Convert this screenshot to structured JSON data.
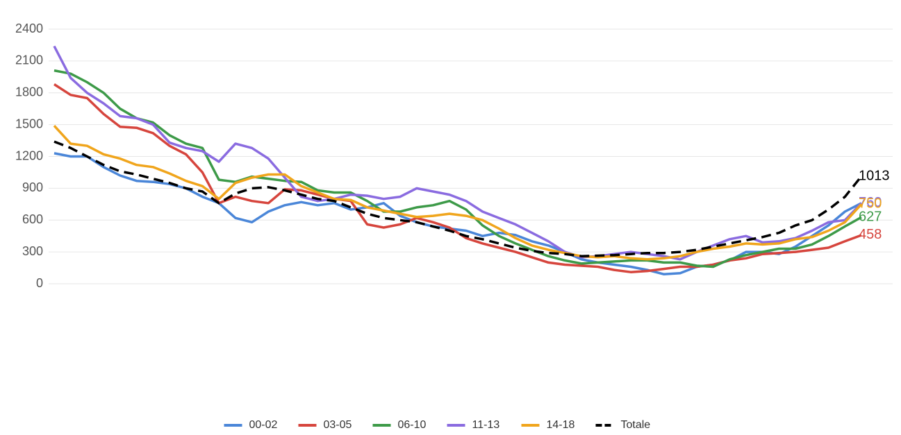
{
  "chart_data": {
    "type": "line",
    "categories": [
      null,
      null,
      null,
      null,
      null,
      null,
      null,
      null,
      null,
      null,
      null,
      null,
      null,
      null,
      null,
      null,
      null,
      null,
      null,
      null,
      null,
      null,
      null,
      null,
      null,
      null,
      null,
      null,
      null,
      null,
      null,
      null,
      null,
      null,
      null,
      null,
      null,
      null,
      null,
      null,
      null,
      null,
      null,
      null,
      null,
      null,
      null,
      null,
      null,
      null
    ],
    "ylim": [
      0,
      2400
    ],
    "yticks": [
      0,
      300,
      600,
      900,
      1200,
      1500,
      1800,
      2100,
      2400
    ],
    "grid": true,
    "legend": "bottom",
    "series": [
      {
        "name": "00-02",
        "color": "#4a86d8",
        "dashed": false,
        "values": [
          1230,
          1200,
          1200,
          1100,
          1020,
          970,
          960,
          940,
          900,
          820,
          760,
          620,
          580,
          680,
          740,
          770,
          740,
          760,
          700,
          720,
          760,
          640,
          580,
          540,
          520,
          500,
          450,
          480,
          460,
          400,
          360,
          300,
          230,
          200,
          180,
          160,
          130,
          90,
          100,
          160,
          180,
          220,
          300,
          300,
          280,
          350,
          450,
          550,
          680,
          760
        ]
      },
      {
        "name": "03-05",
        "color": "#d6453d",
        "dashed": false,
        "values": [
          1880,
          1780,
          1750,
          1600,
          1480,
          1470,
          1420,
          1300,
          1220,
          1050,
          760,
          820,
          780,
          760,
          890,
          880,
          840,
          800,
          780,
          560,
          530,
          560,
          620,
          580,
          530,
          430,
          380,
          340,
          300,
          250,
          200,
          180,
          170,
          160,
          130,
          110,
          120,
          140,
          160,
          160,
          180,
          220,
          240,
          280,
          290,
          300,
          320,
          340,
          400,
          458
        ]
      },
      {
        "name": "06-10",
        "color": "#3d9a48",
        "dashed": false,
        "values": [
          2010,
          1980,
          1900,
          1800,
          1650,
          1560,
          1520,
          1400,
          1320,
          1280,
          980,
          960,
          1010,
          990,
          970,
          960,
          880,
          860,
          860,
          780,
          680,
          680,
          720,
          740,
          780,
          700,
          550,
          450,
          380,
          320,
          260,
          220,
          190,
          200,
          210,
          220,
          220,
          200,
          200,
          170,
          160,
          230,
          270,
          300,
          330,
          330,
          370,
          450,
          540,
          627
        ]
      },
      {
        "name": "11-13",
        "color": "#8a6be0",
        "dashed": false,
        "values": [
          2240,
          1940,
          1800,
          1700,
          1580,
          1560,
          1500,
          1330,
          1280,
          1250,
          1150,
          1320,
          1280,
          1180,
          1000,
          820,
          780,
          800,
          840,
          830,
          800,
          820,
          900,
          870,
          840,
          780,
          680,
          620,
          560,
          480,
          400,
          300,
          250,
          260,
          280,
          300,
          280,
          260,
          230,
          300,
          360,
          420,
          450,
          390,
          400,
          430,
          500,
          580,
          600,
          760
        ]
      },
      {
        "name": "14-18",
        "color": "#f0a51c",
        "dashed": false,
        "values": [
          1490,
          1320,
          1300,
          1220,
          1180,
          1120,
          1100,
          1040,
          970,
          920,
          800,
          950,
          1000,
          1030,
          1030,
          920,
          860,
          800,
          790,
          720,
          690,
          660,
          630,
          640,
          660,
          640,
          600,
          520,
          430,
          360,
          320,
          290,
          260,
          250,
          260,
          240,
          230,
          240,
          260,
          300,
          330,
          350,
          380,
          370,
          380,
          420,
          440,
          500,
          580,
          750
        ]
      },
      {
        "name": "Totale",
        "color": "#000000",
        "dashed": true,
        "values": [
          1340,
          1280,
          1200,
          1120,
          1060,
          1030,
          990,
          950,
          900,
          870,
          760,
          850,
          900,
          910,
          880,
          840,
          800,
          780,
          720,
          660,
          620,
          600,
          580,
          540,
          500,
          450,
          420,
          380,
          340,
          310,
          290,
          280,
          260,
          265,
          270,
          280,
          290,
          290,
          300,
          320,
          350,
          380,
          410,
          440,
          480,
          550,
          600,
          700,
          820,
          1013
        ]
      }
    ]
  }
}
